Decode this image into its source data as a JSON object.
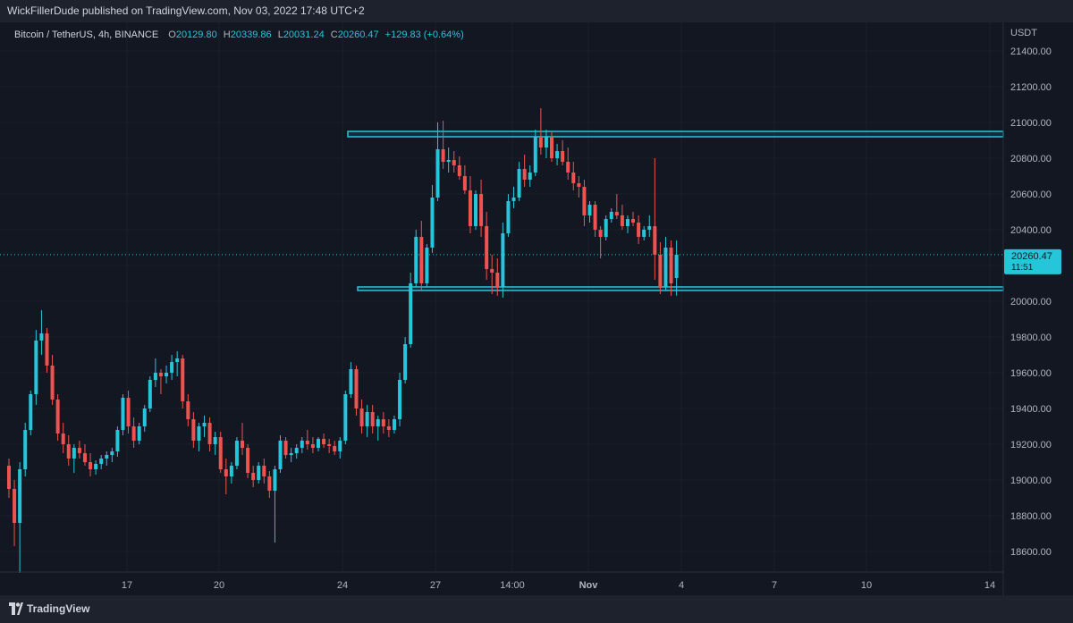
{
  "header": {
    "publish_line": "WickFillerDude published on TradingView.com, Nov 03, 2022 17:48 UTC+2"
  },
  "legend": {
    "symbol": "Bitcoin / TetherUS, 4h, BINANCE",
    "open_label": "O",
    "open": "20129.80",
    "high_label": "H",
    "high": "20339.86",
    "low_label": "L",
    "low": "20031.24",
    "close_label": "C",
    "close": "20260.47",
    "change": "+129.83 (+0.64%)"
  },
  "price_axis": {
    "currency": "USDT",
    "ticks": [
      "21400.00",
      "21200.00",
      "21000.00",
      "20800.00",
      "20600.00",
      "20400.00",
      "20200.00",
      "20000.00",
      "19800.00",
      "19600.00",
      "19400.00",
      "19200.00",
      "19000.00",
      "18800.00",
      "18600.00"
    ],
    "last_price": "20260.47",
    "countdown": "11:51"
  },
  "time_axis": {
    "labels": [
      "17",
      "20",
      "24",
      "27",
      "14:00",
      "Nov",
      "4",
      "7",
      "10",
      "14"
    ]
  },
  "footer": {
    "brand": "TradingView"
  },
  "colors": {
    "up": "#26c6da",
    "down": "#ef5350",
    "zone": "#26c6da",
    "background": "#131722"
  },
  "chart_data": {
    "type": "candlestick",
    "symbol": "Bitcoin / TetherUS",
    "interval": "4h",
    "exchange": "BINANCE",
    "ylim": [
      18450,
      21600
    ],
    "last_price": 20260.47,
    "resistance_zone": [
      20920,
      20950
    ],
    "support_zone": [
      20060,
      20080
    ],
    "candles": [
      {
        "o": 19080,
        "h": 19120,
        "l": 18900,
        "c": 18950
      },
      {
        "o": 18950,
        "h": 19000,
        "l": 18630,
        "c": 18760
      },
      {
        "o": 18760,
        "h": 19100,
        "l": 18480,
        "c": 19060
      },
      {
        "o": 19060,
        "h": 19320,
        "l": 19020,
        "c": 19280
      },
      {
        "o": 19280,
        "h": 19500,
        "l": 19250,
        "c": 19480
      },
      {
        "o": 19480,
        "h": 19840,
        "l": 19420,
        "c": 19780
      },
      {
        "o": 19780,
        "h": 19950,
        "l": 19700,
        "c": 19820
      },
      {
        "o": 19820,
        "h": 19850,
        "l": 19600,
        "c": 19640
      },
      {
        "o": 19640,
        "h": 19700,
        "l": 19420,
        "c": 19450
      },
      {
        "o": 19450,
        "h": 19480,
        "l": 19220,
        "c": 19260
      },
      {
        "o": 19260,
        "h": 19320,
        "l": 19150,
        "c": 19200
      },
      {
        "o": 19200,
        "h": 19250,
        "l": 19080,
        "c": 19120
      },
      {
        "o": 19120,
        "h": 19200,
        "l": 19040,
        "c": 19180
      },
      {
        "o": 19180,
        "h": 19220,
        "l": 19120,
        "c": 19150
      },
      {
        "o": 19150,
        "h": 19200,
        "l": 19080,
        "c": 19100
      },
      {
        "o": 19100,
        "h": 19150,
        "l": 19020,
        "c": 19060
      },
      {
        "o": 19060,
        "h": 19110,
        "l": 19030,
        "c": 19090
      },
      {
        "o": 19090,
        "h": 19140,
        "l": 19060,
        "c": 19120
      },
      {
        "o": 19120,
        "h": 19160,
        "l": 19080,
        "c": 19140
      },
      {
        "o": 19140,
        "h": 19180,
        "l": 19100,
        "c": 19160
      },
      {
        "o": 19160,
        "h": 19300,
        "l": 19130,
        "c": 19280
      },
      {
        "o": 19280,
        "h": 19480,
        "l": 19250,
        "c": 19460
      },
      {
        "o": 19460,
        "h": 19500,
        "l": 19260,
        "c": 19300
      },
      {
        "o": 19300,
        "h": 19350,
        "l": 19180,
        "c": 19220
      },
      {
        "o": 19220,
        "h": 19320,
        "l": 19200,
        "c": 19300
      },
      {
        "o": 19300,
        "h": 19420,
        "l": 19270,
        "c": 19400
      },
      {
        "o": 19400,
        "h": 19580,
        "l": 19380,
        "c": 19560
      },
      {
        "o": 19560,
        "h": 19680,
        "l": 19520,
        "c": 19600
      },
      {
        "o": 19600,
        "h": 19620,
        "l": 19480,
        "c": 19580
      },
      {
        "o": 19580,
        "h": 19640,
        "l": 19540,
        "c": 19600
      },
      {
        "o": 19600,
        "h": 19700,
        "l": 19560,
        "c": 19660
      },
      {
        "o": 19660,
        "h": 19720,
        "l": 19580,
        "c": 19680
      },
      {
        "o": 19680,
        "h": 19700,
        "l": 19400,
        "c": 19440
      },
      {
        "o": 19440,
        "h": 19480,
        "l": 19300,
        "c": 19340
      },
      {
        "o": 19340,
        "h": 19380,
        "l": 19180,
        "c": 19220
      },
      {
        "o": 19220,
        "h": 19320,
        "l": 19160,
        "c": 19300
      },
      {
        "o": 19300,
        "h": 19360,
        "l": 19240,
        "c": 19320
      },
      {
        "o": 19320,
        "h": 19350,
        "l": 19160,
        "c": 19200
      },
      {
        "o": 19200,
        "h": 19270,
        "l": 19140,
        "c": 19240
      },
      {
        "o": 19240,
        "h": 19270,
        "l": 19040,
        "c": 19060
      },
      {
        "o": 19060,
        "h": 19120,
        "l": 18920,
        "c": 19020
      },
      {
        "o": 19020,
        "h": 19100,
        "l": 18980,
        "c": 19080
      },
      {
        "o": 19080,
        "h": 19240,
        "l": 19060,
        "c": 19220
      },
      {
        "o": 19220,
        "h": 19320,
        "l": 19140,
        "c": 19180
      },
      {
        "o": 19180,
        "h": 19200,
        "l": 19010,
        "c": 19040
      },
      {
        "o": 19040,
        "h": 19080,
        "l": 18960,
        "c": 19000
      },
      {
        "o": 19000,
        "h": 19100,
        "l": 18980,
        "c": 19080
      },
      {
        "o": 19080,
        "h": 19120,
        "l": 18980,
        "c": 19020
      },
      {
        "o": 19020,
        "h": 19050,
        "l": 18900,
        "c": 18940
      },
      {
        "o": 18940,
        "h": 19080,
        "l": 18650,
        "c": 19060
      },
      {
        "o": 19060,
        "h": 19250,
        "l": 19040,
        "c": 19220
      },
      {
        "o": 19220,
        "h": 19240,
        "l": 19120,
        "c": 19140
      },
      {
        "o": 19140,
        "h": 19180,
        "l": 19100,
        "c": 19150
      },
      {
        "o": 19150,
        "h": 19200,
        "l": 19120,
        "c": 19180
      },
      {
        "o": 19180,
        "h": 19240,
        "l": 19150,
        "c": 19220
      },
      {
        "o": 19220,
        "h": 19280,
        "l": 19170,
        "c": 19200
      },
      {
        "o": 19200,
        "h": 19240,
        "l": 19150,
        "c": 19180
      },
      {
        "o": 19180,
        "h": 19240,
        "l": 19160,
        "c": 19230
      },
      {
        "o": 19230,
        "h": 19260,
        "l": 19180,
        "c": 19200
      },
      {
        "o": 19200,
        "h": 19230,
        "l": 19150,
        "c": 19190
      },
      {
        "o": 19190,
        "h": 19220,
        "l": 19140,
        "c": 19160
      },
      {
        "o": 19160,
        "h": 19240,
        "l": 19120,
        "c": 19220
      },
      {
        "o": 19220,
        "h": 19500,
        "l": 19200,
        "c": 19480
      },
      {
        "o": 19480,
        "h": 19660,
        "l": 19460,
        "c": 19620
      },
      {
        "o": 19620,
        "h": 19640,
        "l": 19360,
        "c": 19400
      },
      {
        "o": 19400,
        "h": 19450,
        "l": 19260,
        "c": 19300
      },
      {
        "o": 19300,
        "h": 19420,
        "l": 19240,
        "c": 19380
      },
      {
        "o": 19380,
        "h": 19420,
        "l": 19260,
        "c": 19300
      },
      {
        "o": 19300,
        "h": 19360,
        "l": 19220,
        "c": 19340
      },
      {
        "o": 19340,
        "h": 19380,
        "l": 19260,
        "c": 19300
      },
      {
        "o": 19300,
        "h": 19340,
        "l": 19240,
        "c": 19280
      },
      {
        "o": 19280,
        "h": 19360,
        "l": 19260,
        "c": 19340
      },
      {
        "o": 19340,
        "h": 19600,
        "l": 19300,
        "c": 19560
      },
      {
        "o": 19560,
        "h": 19800,
        "l": 19540,
        "c": 19760
      },
      {
        "o": 19760,
        "h": 20160,
        "l": 19740,
        "c": 20100
      },
      {
        "o": 20100,
        "h": 20400,
        "l": 20080,
        "c": 20360
      },
      {
        "o": 20360,
        "h": 20450,
        "l": 20060,
        "c": 20100
      },
      {
        "o": 20100,
        "h": 20320,
        "l": 20080,
        "c": 20300
      },
      {
        "o": 20300,
        "h": 20650,
        "l": 20270,
        "c": 20580
      },
      {
        "o": 20580,
        "h": 21000,
        "l": 20560,
        "c": 20850
      },
      {
        "o": 20850,
        "h": 21010,
        "l": 20740,
        "c": 20780
      },
      {
        "o": 20780,
        "h": 20860,
        "l": 20720,
        "c": 20790
      },
      {
        "o": 20790,
        "h": 20840,
        "l": 20720,
        "c": 20760
      },
      {
        "o": 20760,
        "h": 20810,
        "l": 20680,
        "c": 20700
      },
      {
        "o": 20700,
        "h": 20760,
        "l": 20600,
        "c": 20620
      },
      {
        "o": 20620,
        "h": 20700,
        "l": 20380,
        "c": 20420
      },
      {
        "o": 20420,
        "h": 20620,
        "l": 20400,
        "c": 20600
      },
      {
        "o": 20600,
        "h": 20680,
        "l": 20360,
        "c": 20420
      },
      {
        "o": 20420,
        "h": 20500,
        "l": 20120,
        "c": 20180
      },
      {
        "o": 20180,
        "h": 20260,
        "l": 20040,
        "c": 20160
      },
      {
        "o": 20160,
        "h": 20240,
        "l": 20030,
        "c": 20080
      },
      {
        "o": 20080,
        "h": 20440,
        "l": 20020,
        "c": 20380
      },
      {
        "o": 20380,
        "h": 20600,
        "l": 20360,
        "c": 20560
      },
      {
        "o": 20560,
        "h": 20640,
        "l": 20520,
        "c": 20580
      },
      {
        "o": 20580,
        "h": 20780,
        "l": 20560,
        "c": 20740
      },
      {
        "o": 20740,
        "h": 20820,
        "l": 20640,
        "c": 20680
      },
      {
        "o": 20680,
        "h": 20760,
        "l": 20640,
        "c": 20720
      },
      {
        "o": 20720,
        "h": 20960,
        "l": 20700,
        "c": 20920
      },
      {
        "o": 20920,
        "h": 21080,
        "l": 20820,
        "c": 20860
      },
      {
        "o": 20860,
        "h": 20960,
        "l": 20800,
        "c": 20920
      },
      {
        "o": 20920,
        "h": 20950,
        "l": 20780,
        "c": 20800
      },
      {
        "o": 20800,
        "h": 20880,
        "l": 20760,
        "c": 20840
      },
      {
        "o": 20840,
        "h": 20900,
        "l": 20760,
        "c": 20780
      },
      {
        "o": 20780,
        "h": 20860,
        "l": 20680,
        "c": 20720
      },
      {
        "o": 20720,
        "h": 20780,
        "l": 20620,
        "c": 20660
      },
      {
        "o": 20660,
        "h": 20700,
        "l": 20580,
        "c": 20640
      },
      {
        "o": 20640,
        "h": 20680,
        "l": 20420,
        "c": 20480
      },
      {
        "o": 20480,
        "h": 20560,
        "l": 20440,
        "c": 20540
      },
      {
        "o": 20540,
        "h": 20560,
        "l": 20360,
        "c": 20400
      },
      {
        "o": 20400,
        "h": 20420,
        "l": 20240,
        "c": 20360
      },
      {
        "o": 20360,
        "h": 20480,
        "l": 20340,
        "c": 20460
      },
      {
        "o": 20460,
        "h": 20520,
        "l": 20440,
        "c": 20500
      },
      {
        "o": 20500,
        "h": 20600,
        "l": 20460,
        "c": 20480
      },
      {
        "o": 20480,
        "h": 20540,
        "l": 20400,
        "c": 20420
      },
      {
        "o": 20420,
        "h": 20480,
        "l": 20380,
        "c": 20460
      },
      {
        "o": 20460,
        "h": 20500,
        "l": 20420,
        "c": 20440
      },
      {
        "o": 20440,
        "h": 20480,
        "l": 20320,
        "c": 20360
      },
      {
        "o": 20360,
        "h": 20420,
        "l": 20340,
        "c": 20400
      },
      {
        "o": 20400,
        "h": 20480,
        "l": 20360,
        "c": 20420
      },
      {
        "o": 20420,
        "h": 20800,
        "l": 20120,
        "c": 20260
      },
      {
        "o": 20260,
        "h": 20330,
        "l": 20040,
        "c": 20080
      },
      {
        "o": 20080,
        "h": 20360,
        "l": 20060,
        "c": 20300
      },
      {
        "o": 20300,
        "h": 20340,
        "l": 20030,
        "c": 20100
      },
      {
        "o": 20129.8,
        "h": 20339.86,
        "l": 20031.24,
        "c": 20260.47
      }
    ]
  }
}
